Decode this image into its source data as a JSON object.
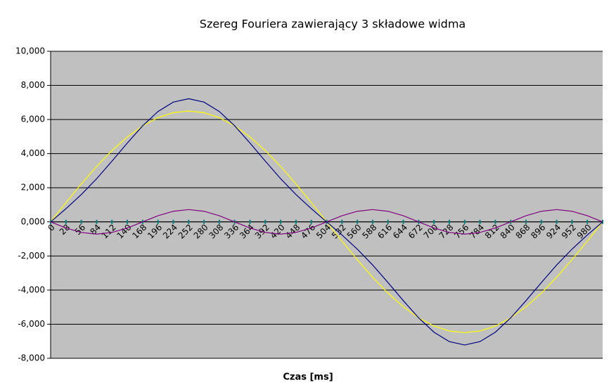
{
  "chart_data": {
    "type": "line",
    "title": "Szereg Fouriera zawierający 3 składowe widma",
    "x_label": "Czas [ms]",
    "categories": [
      "0",
      "28",
      "56",
      "84",
      "112",
      "140",
      "168",
      "196",
      "224",
      "252",
      "280",
      "308",
      "336",
      "364",
      "392",
      "420",
      "448",
      "476",
      "504",
      "532",
      "560",
      "588",
      "616",
      "644",
      "672",
      "700",
      "728",
      "756",
      "784",
      "812",
      "840",
      "868",
      "896",
      "924",
      "952",
      "980",
      null
    ],
    "series": [
      {
        "color": "#ffff00",
        "values": [
          0,
          1.13,
          2.22,
          3.25,
          4.18,
          4.98,
          5.63,
          6.11,
          6.4,
          6.5,
          6.4,
          6.11,
          5.63,
          4.98,
          4.18,
          3.25,
          2.22,
          1.13,
          0,
          -1.13,
          -2.22,
          -3.25,
          -4.18,
          -4.98,
          -5.63,
          -6.11,
          -6.4,
          -6.5,
          -6.4,
          -6.11,
          -5.63,
          -4.98,
          -4.18,
          -3.25,
          -2.22,
          -1.13,
          0
        ]
      },
      {
        "color": "#800080",
        "values": [
          0,
          -0.36,
          -0.62,
          -0.72,
          -0.62,
          -0.36,
          0,
          0.36,
          0.62,
          0.72,
          0.62,
          0.36,
          0,
          -0.36,
          -0.62,
          -0.72,
          -0.62,
          -0.36,
          0,
          0.36,
          0.62,
          0.72,
          0.62,
          0.36,
          0,
          -0.36,
          -0.62,
          -0.72,
          -0.62,
          -0.36,
          0,
          0.36,
          0.62,
          0.72,
          0.62,
          0.36,
          0
        ]
      },
      {
        "color": "#000080",
        "values": [
          0,
          0.77,
          1.6,
          2.53,
          3.56,
          4.62,
          5.63,
          6.47,
          7.02,
          7.22,
          7.02,
          6.47,
          5.63,
          4.62,
          3.56,
          2.53,
          1.6,
          0.77,
          0,
          -0.77,
          -1.6,
          -2.53,
          -3.56,
          -4.62,
          -5.63,
          -6.47,
          -7.02,
          -7.22,
          -7.02,
          -6.47,
          -5.63,
          -4.62,
          -3.56,
          -2.53,
          -1.6,
          -0.77,
          0
        ]
      }
    ],
    "ylim": [
      -8,
      10
    ],
    "yticks": [
      {
        "value": -8,
        "label": "-8,000"
      },
      {
        "value": -6,
        "label": "-6,000"
      },
      {
        "value": -4,
        "label": "-4,000"
      },
      {
        "value": -2,
        "label": "-2,000"
      },
      {
        "value": 0,
        "label": "0,000"
      },
      {
        "value": 2,
        "label": "2,000"
      },
      {
        "value": 4,
        "label": "4,000"
      },
      {
        "value": 6,
        "label": "6,000"
      },
      {
        "value": 8,
        "label": "8,000"
      },
      {
        "value": 10,
        "label": "10,000"
      }
    ],
    "grid": true,
    "plot_background": "#c0c0c0"
  }
}
